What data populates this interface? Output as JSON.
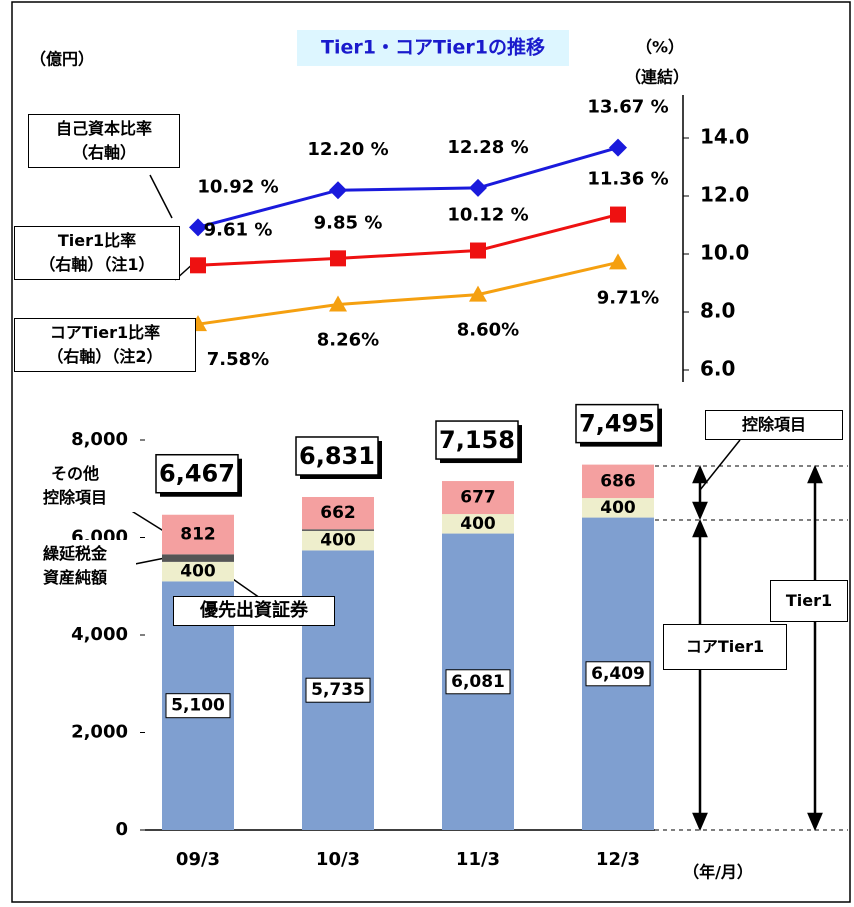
{
  "chart_data": {
    "type": "bar_line",
    "title": "Tier1・コアTier1の推移",
    "y_label": "（億円）",
    "y2_label": "（%）",
    "y2_sublabel": "（連結）",
    "x_label": "（年/月）",
    "categories": [
      "09/3",
      "10/3",
      "11/3",
      "12/3"
    ],
    "ylim": [
      0,
      8000
    ],
    "yticks": [
      0,
      {
        "value": 2000,
        "label": "2,000"
      },
      {
        "value": 4000,
        "label": "4,000"
      },
      {
        "value": 6000,
        "label": "6,000"
      },
      {
        "value": 8000,
        "label": "8,000"
      }
    ],
    "y2lim": [
      6,
      14
    ],
    "y2ticks": [
      {
        "value": 6,
        "label": "6.0"
      },
      {
        "value": 8,
        "label": "8.0"
      },
      {
        "value": 10,
        "label": "10.0"
      },
      {
        "value": 12,
        "label": "12.0"
      },
      {
        "value": 14,
        "label": "14.0"
      }
    ],
    "bar_series": [
      {
        "name": "コアTier1",
        "color": "#7f9fd0",
        "values": [
          5100,
          5735,
          6081,
          6409
        ],
        "value_labels": [
          "5,100",
          "5,735",
          "6,081",
          "6,409"
        ]
      },
      {
        "name": "優先出資証券",
        "color": "#eeeecc",
        "values": [
          400,
          400,
          400,
          400
        ],
        "value_labels": [
          "400",
          "400",
          "400",
          "400"
        ]
      },
      {
        "name": "繰延税金\n資産純額",
        "color": "#555555",
        "values": [
          155,
          34,
          0,
          0
        ]
      },
      {
        "name": "その他\n控除項目",
        "color": "#f4a0a0",
        "values": [
          812,
          662,
          677,
          686
        ],
        "value_labels": [
          "812",
          "662",
          "677",
          "686"
        ]
      }
    ],
    "totals": [
      6467,
      6831,
      7158,
      7495
    ],
    "total_labels": [
      "6,467",
      "6,831",
      "7,158",
      "7,495"
    ],
    "series": [
      {
        "name": "自己資本比率\n（右軸）",
        "color": "#1a1adc",
        "marker": "diamond",
        "axis": "y2",
        "values": [
          10.92,
          12.2,
          12.28,
          13.67
        ],
        "value_labels": [
          "10.92 %",
          "12.20 %",
          "12.28 %",
          "13.67 %"
        ]
      },
      {
        "name": "Tier1比率\n（右軸）（注1）",
        "color": "#ee1111",
        "marker": "square",
        "axis": "y2",
        "values": [
          9.61,
          9.85,
          10.12,
          11.36
        ],
        "value_labels": [
          "9.61 %",
          "9.85 %",
          "10.12 %",
          "11.36 %"
        ]
      },
      {
        "name": "コアTier1比率\n（右軸）（注2）",
        "color": "#f5a010",
        "marker": "triangle",
        "axis": "y2",
        "values": [
          7.58,
          8.26,
          8.6,
          9.71
        ],
        "value_labels": [
          "7.58%",
          "8.26%",
          "8.60%",
          "9.71%"
        ]
      }
    ],
    "annotations": [
      "控除項目",
      "Tier1"
    ]
  }
}
